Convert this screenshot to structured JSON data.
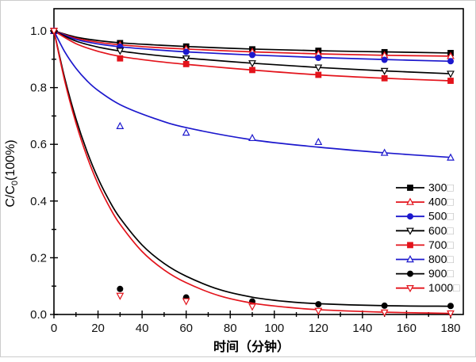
{
  "figure": {
    "background": "#ffffff",
    "border_color": "#cccccc"
  },
  "chart_data": {
    "type": "line",
    "title": "",
    "xlabel": "时间（分钟）",
    "ylabel": "C/C0(100%)",
    "ylabel_parts": {
      "prefix": "C/C",
      "sub": "0",
      "suffix": "(100%)"
    },
    "xlim": [
      0,
      186
    ],
    "ylim": [
      0,
      1.078
    ],
    "grid": false,
    "x_axis": {
      "major_ticks": [
        0,
        20,
        40,
        60,
        80,
        100,
        120,
        140,
        160,
        180
      ],
      "minor_ticks": [
        10,
        30,
        50,
        70,
        90,
        110,
        130,
        150,
        170
      ]
    },
    "y_axis": {
      "major_ticks": [
        0.0,
        0.2,
        0.4,
        0.6,
        0.8,
        1.0
      ],
      "major_labels": [
        "0.0",
        "0.2",
        "0.4",
        "0.6",
        "0.8",
        "1.0"
      ],
      "minor_ticks": [
        0.1,
        0.3,
        0.5,
        0.7,
        0.9
      ]
    },
    "colors": {
      "black": "#000000",
      "red": "#e3131b",
      "blue": "#1c18cd"
    },
    "legend": {
      "position": "right-center",
      "missing_glyph": "□"
    },
    "series": [
      {
        "name": "300",
        "label": "300",
        "color": "#000000",
        "marker": "square",
        "marker_style": "filled",
        "x": [
          0,
          30,
          60,
          90,
          120,
          150,
          180
        ],
        "values": [
          1.0,
          0.957,
          0.945,
          0.935,
          0.93,
          0.925,
          0.922
        ],
        "curve": [
          [
            0,
            1.0
          ],
          [
            10,
            0.978
          ],
          [
            20,
            0.966
          ],
          [
            30,
            0.958
          ],
          [
            45,
            0.951
          ],
          [
            60,
            0.945
          ],
          [
            90,
            0.936
          ],
          [
            120,
            0.93
          ],
          [
            150,
            0.926
          ],
          [
            180,
            0.922
          ]
        ]
      },
      {
        "name": "400",
        "label": "400",
        "color": "#e3131b",
        "marker": "triangle-up",
        "marker_style": "open",
        "x": [
          0,
          30,
          60,
          90,
          120,
          150,
          180
        ],
        "values": [
          1.0,
          0.95,
          0.936,
          0.926,
          0.919,
          0.914,
          0.911
        ],
        "curve": [
          [
            0,
            1.0
          ],
          [
            10,
            0.974
          ],
          [
            20,
            0.96
          ],
          [
            30,
            0.951
          ],
          [
            45,
            0.942
          ],
          [
            60,
            0.936
          ],
          [
            90,
            0.926
          ],
          [
            120,
            0.919
          ],
          [
            150,
            0.914
          ],
          [
            180,
            0.911
          ]
        ]
      },
      {
        "name": "500",
        "label": "500",
        "color": "#1c18cd",
        "marker": "circle",
        "marker_style": "filled",
        "x": [
          0,
          30,
          60,
          90,
          120,
          150,
          180
        ],
        "values": [
          1.0,
          0.944,
          0.926,
          0.915,
          0.905,
          0.898,
          0.893
        ],
        "curve": [
          [
            0,
            1.0
          ],
          [
            10,
            0.97
          ],
          [
            20,
            0.954
          ],
          [
            30,
            0.944
          ],
          [
            45,
            0.934
          ],
          [
            60,
            0.926
          ],
          [
            90,
            0.915
          ],
          [
            120,
            0.906
          ],
          [
            150,
            0.899
          ],
          [
            180,
            0.893
          ]
        ]
      },
      {
        "name": "600",
        "label": "600",
        "color": "#000000",
        "marker": "triangle-down",
        "marker_style": "open",
        "x": [
          0,
          30,
          60,
          90,
          120,
          150,
          180
        ],
        "values": [
          1.0,
          0.93,
          0.903,
          0.886,
          0.871,
          0.859,
          0.849
        ],
        "curve": [
          [
            0,
            1.0
          ],
          [
            10,
            0.964
          ],
          [
            20,
            0.943
          ],
          [
            30,
            0.929
          ],
          [
            45,
            0.915
          ],
          [
            60,
            0.904
          ],
          [
            90,
            0.886
          ],
          [
            120,
            0.871
          ],
          [
            150,
            0.859
          ],
          [
            180,
            0.849
          ]
        ]
      },
      {
        "name": "700",
        "label": "700",
        "color": "#e3131b",
        "marker": "square",
        "marker_style": "filled",
        "x": [
          0,
          30,
          60,
          90,
          120,
          150,
          180
        ],
        "values": [
          1.0,
          0.903,
          0.883,
          0.862,
          0.845,
          0.833,
          0.824
        ],
        "curve": [
          [
            0,
            1.0
          ],
          [
            10,
            0.955
          ],
          [
            20,
            0.928
          ],
          [
            30,
            0.91
          ],
          [
            45,
            0.894
          ],
          [
            60,
            0.882
          ],
          [
            90,
            0.862
          ],
          [
            120,
            0.845
          ],
          [
            150,
            0.833
          ],
          [
            180,
            0.824
          ]
        ]
      },
      {
        "name": "800",
        "label": "800",
        "color": "#1c18cd",
        "marker": "triangle-up",
        "marker_style": "open",
        "x": [
          0,
          30,
          60,
          90,
          120,
          150,
          180
        ],
        "values": [
          1.0,
          0.664,
          0.641,
          0.622,
          0.608,
          0.57,
          0.553
        ],
        "curve": [
          [
            0,
            1.0
          ],
          [
            5,
            0.925
          ],
          [
            10,
            0.868
          ],
          [
            15,
            0.824
          ],
          [
            20,
            0.79
          ],
          [
            30,
            0.74
          ],
          [
            45,
            0.693
          ],
          [
            60,
            0.659
          ],
          [
            90,
            0.616
          ],
          [
            120,
            0.59
          ],
          [
            150,
            0.57
          ],
          [
            180,
            0.554
          ]
        ]
      },
      {
        "name": "900",
        "label": "900",
        "color": "#000000",
        "marker": "circle",
        "marker_style": "filled",
        "x": [
          0,
          30,
          60,
          90,
          120,
          150,
          180
        ],
        "values": [
          1.0,
          0.09,
          0.06,
          0.046,
          0.036,
          0.031,
          0.03
        ],
        "curve": [
          [
            0,
            1.0
          ],
          [
            5,
            0.83
          ],
          [
            10,
            0.69
          ],
          [
            15,
            0.575
          ],
          [
            20,
            0.48
          ],
          [
            25,
            0.403
          ],
          [
            30,
            0.34
          ],
          [
            40,
            0.245
          ],
          [
            50,
            0.18
          ],
          [
            60,
            0.135
          ],
          [
            75,
            0.088
          ],
          [
            90,
            0.061
          ],
          [
            105,
            0.046
          ],
          [
            120,
            0.038
          ],
          [
            150,
            0.031
          ],
          [
            180,
            0.029
          ]
        ]
      },
      {
        "name": "1000",
        "label": "1000",
        "color": "#e3131b",
        "marker": "triangle-down",
        "marker_style": "open",
        "x": [
          0,
          30,
          60,
          90,
          120,
          150,
          180
        ],
        "values": [
          1.0,
          0.066,
          0.047,
          0.028,
          0.013,
          0.007,
          0.004
        ],
        "curve": [
          [
            0,
            1.0
          ],
          [
            5,
            0.82
          ],
          [
            10,
            0.675
          ],
          [
            15,
            0.557
          ],
          [
            20,
            0.46
          ],
          [
            25,
            0.382
          ],
          [
            30,
            0.318
          ],
          [
            40,
            0.222
          ],
          [
            50,
            0.157
          ],
          [
            60,
            0.112
          ],
          [
            75,
            0.066
          ],
          [
            90,
            0.04
          ],
          [
            105,
            0.026
          ],
          [
            120,
            0.017
          ],
          [
            150,
            0.008
          ],
          [
            180,
            0.004
          ]
        ]
      }
    ]
  }
}
